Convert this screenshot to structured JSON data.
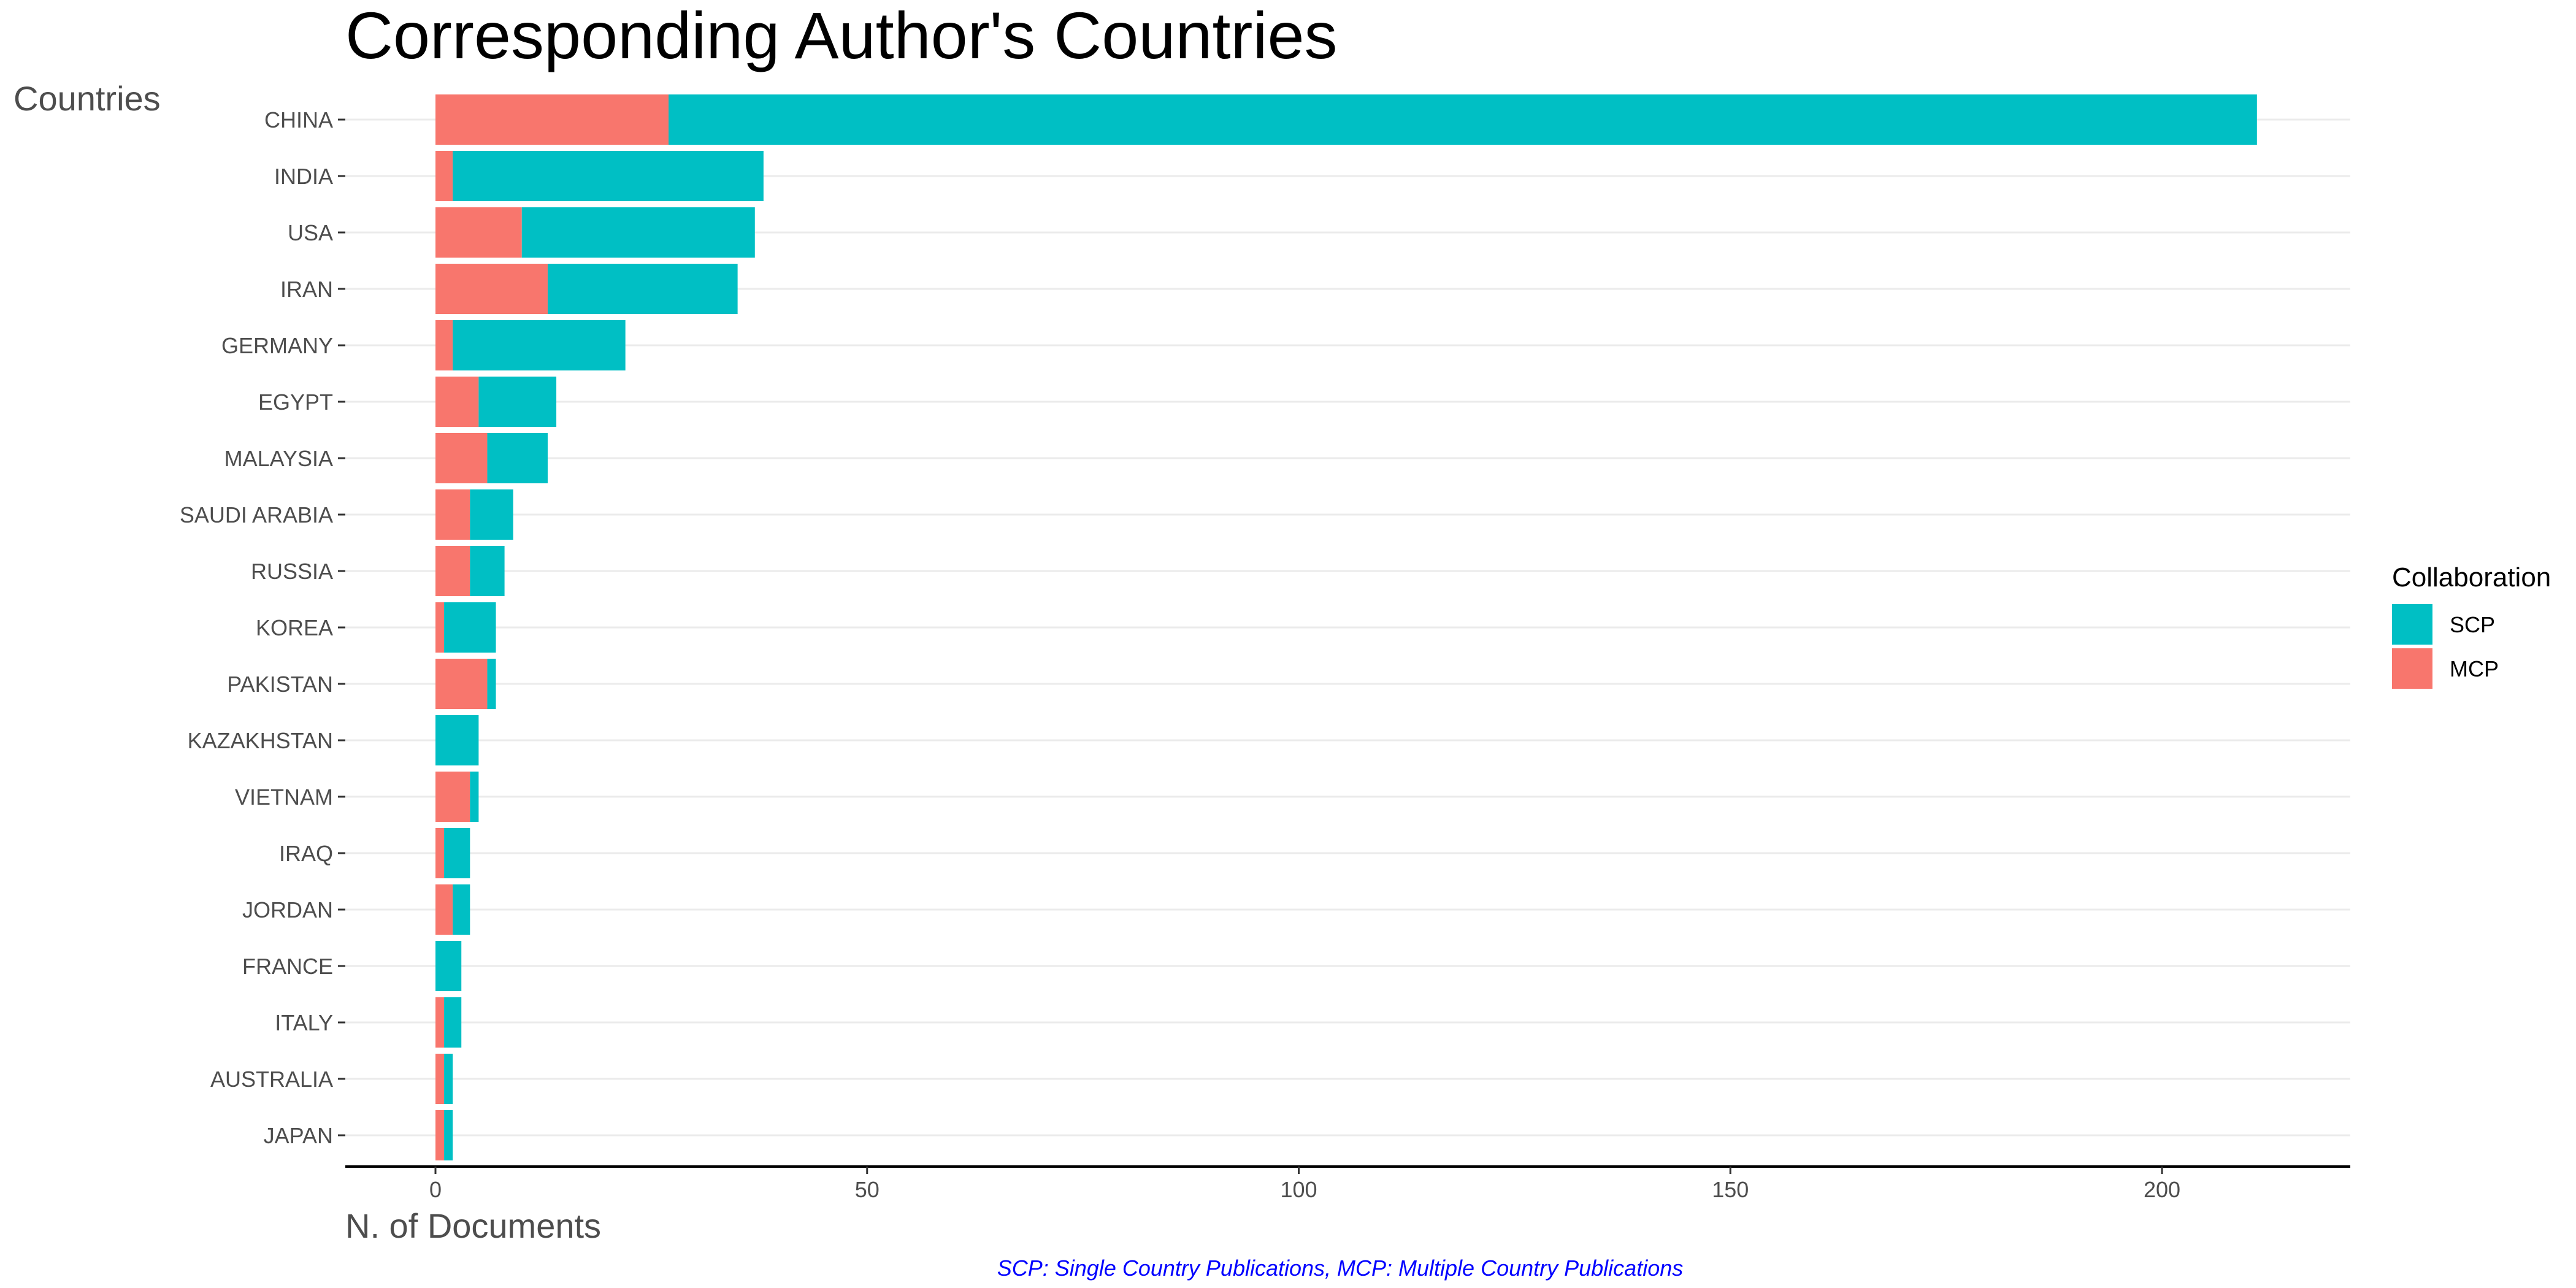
{
  "chart_data": {
    "type": "bar",
    "orientation": "horizontal",
    "stacked": true,
    "title": "Corresponding Author's Countries",
    "xlabel": "N. of Documents",
    "ylabel": "Countries",
    "categories": [
      "CHINA",
      "INDIA",
      "USA",
      "IRAN",
      "GERMANY",
      "EGYPT",
      "MALAYSIA",
      "SAUDI ARABIA",
      "RUSSIA",
      "KOREA",
      "PAKISTAN",
      "KAZAKHSTAN",
      "VIETNAM",
      "IRAQ",
      "JORDAN",
      "FRANCE",
      "ITALY",
      "AUSTRALIA",
      "JAPAN"
    ],
    "series": [
      {
        "name": "SCP",
        "color": "#00BFC4",
        "values": [
          184,
          36,
          27,
          22,
          20,
          9,
          7,
          5,
          4,
          6,
          1,
          5,
          1,
          3,
          2,
          3,
          2,
          1,
          1
        ]
      },
      {
        "name": "MCP",
        "color": "#F8766D",
        "values": [
          27,
          2,
          10,
          13,
          2,
          5,
          6,
          4,
          4,
          1,
          6,
          0,
          4,
          1,
          2,
          0,
          1,
          1,
          1
        ]
      }
    ],
    "xlim": [
      0,
      211
    ],
    "xticks": [
      0,
      50,
      100,
      150,
      200
    ],
    "grid": true,
    "legend": {
      "title": "Collaboration",
      "position": "right",
      "entries": [
        "SCP",
        "MCP"
      ]
    },
    "caption": "SCP: Single Country Publications, MCP: Multiple Country Publications"
  }
}
